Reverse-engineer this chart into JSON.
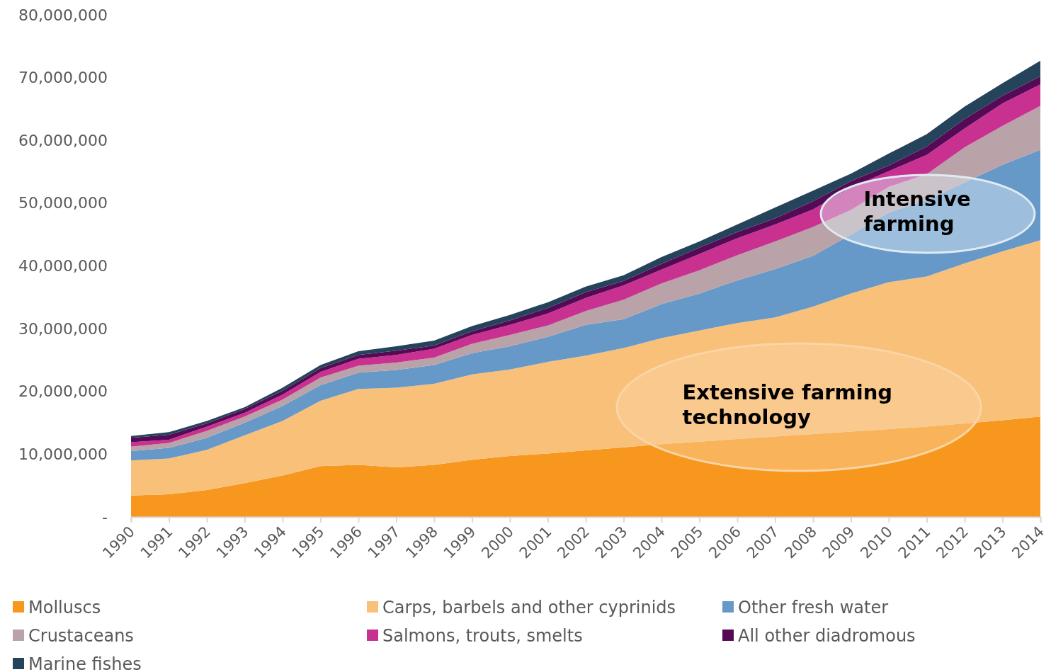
{
  "chart_data": {
    "type": "area",
    "stacked": true,
    "categories": [
      "1990",
      "1991",
      "1992",
      "1993",
      "1994",
      "1995",
      "1996",
      "1997",
      "1998",
      "1999",
      "2000",
      "2001",
      "2002",
      "2003",
      "2004",
      "2005",
      "2006",
      "2007",
      "2008",
      "2009",
      "2010",
      "2011",
      "2012",
      "2013",
      "2014"
    ],
    "ylim": [
      0,
      80000000
    ],
    "yticks": [
      {
        "value": 0,
        "label": "-"
      },
      {
        "value": 10000000,
        "label": "10,000,000"
      },
      {
        "value": 20000000,
        "label": "20,000,000"
      },
      {
        "value": 30000000,
        "label": "30,000,000"
      },
      {
        "value": 40000000,
        "label": "40,000,000"
      },
      {
        "value": 50000000,
        "label": "50,000,000"
      },
      {
        "value": 60000000,
        "label": "60,000,000"
      },
      {
        "value": 70000000,
        "label": "70,000,000"
      },
      {
        "value": 80000000,
        "label": "80,000,000"
      }
    ],
    "grid": false,
    "legend": "bottom",
    "series": [
      {
        "name": "Molluscs",
        "color": "#f7971e",
        "values": [
          3400000,
          3600000,
          4300000,
          5400000,
          6600000,
          8100000,
          8300000,
          7900000,
          8300000,
          9100000,
          9700000,
          10100000,
          10600000,
          11100000,
          11600000,
          12000000,
          12400000,
          12800000,
          13200000,
          13600000,
          14000000,
          14400000,
          14900000,
          15400000,
          16000000
        ]
      },
      {
        "name": "Carps, barbels and other cyprinids",
        "color": "#f9c07a",
        "values": [
          5600000,
          5700000,
          6400000,
          7600000,
          8700000,
          10400000,
          12100000,
          12700000,
          12900000,
          13600000,
          13800000,
          14600000,
          15100000,
          15800000,
          16900000,
          17700000,
          18500000,
          19000000,
          20300000,
          22000000,
          23400000,
          23900000,
          25500000,
          26900000,
          28100000
        ]
      },
      {
        "name": "Other fresh water",
        "color": "#6699c8",
        "values": [
          1500000,
          1700000,
          1900000,
          2000000,
          2400000,
          2500000,
          2600000,
          2800000,
          3000000,
          3400000,
          3700000,
          4000000,
          4900000,
          4600000,
          5400000,
          5900000,
          6800000,
          7700000,
          8100000,
          9400000,
          11100000,
          12200000,
          12900000,
          13800000,
          14400000
        ]
      },
      {
        "name": "Crustaceans",
        "color": "#b9a2a8",
        "values": [
          700000,
          800000,
          1100000,
          1000000,
          1000000,
          1200000,
          1100000,
          1200000,
          1200000,
          1500000,
          1800000,
          1800000,
          2200000,
          3100000,
          3300000,
          3700000,
          4000000,
          4400000,
          4600000,
          3900000,
          4100000,
          4100000,
          5600000,
          6200000,
          7000000
        ]
      },
      {
        "name": "Salmons, trouts, smelts",
        "color": "#c93190",
        "values": [
          700000,
          500000,
          700000,
          600000,
          800000,
          900000,
          1100000,
          1200000,
          1400000,
          1400000,
          1600000,
          1900000,
          2100000,
          2300000,
          2200000,
          2600000,
          2700000,
          2700000,
          2800000,
          3600000,
          2500000,
          3100000,
          3000000,
          3600000,
          3400000
        ]
      },
      {
        "name": "All other diadromous",
        "color": "#560a56",
        "values": [
          700000,
          800000,
          500000,
          600000,
          600000,
          600000,
          600000,
          700000,
          500000,
          600000,
          700000,
          900000,
          900000,
          700000,
          900000,
          1000000,
          1000000,
          1000000,
          1300000,
          1000000,
          900000,
          1300000,
          1500000,
          1200000,
          1300000
        ]
      },
      {
        "name": "Marine fishes",
        "color": "#25435a",
        "values": [
          300000,
          400000,
          400000,
          300000,
          500000,
          500000,
          600000,
          700000,
          800000,
          800000,
          900000,
          900000,
          900000,
          900000,
          1100000,
          1000000,
          1200000,
          1700000,
          1700000,
          1200000,
          1900000,
          2000000,
          2000000,
          2000000,
          2500000
        ]
      }
    ],
    "annotations": [
      "Extensive farming technology",
      "Intensive farming"
    ]
  }
}
